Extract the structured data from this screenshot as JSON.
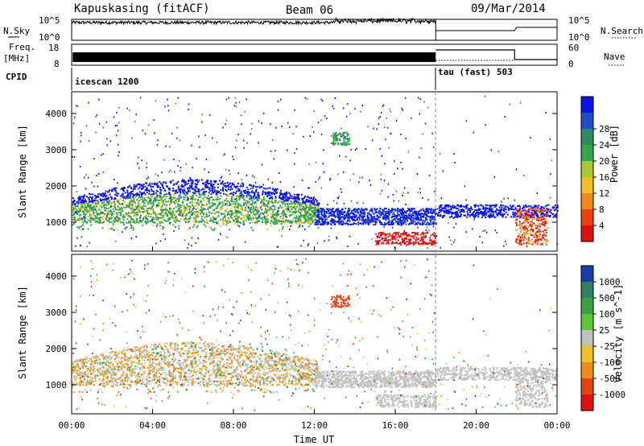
{
  "header": {
    "station": "Kapuskasing (fitACF)",
    "beam": "Beam 06",
    "date": "09/Mar/2014"
  },
  "strips": {
    "nsky_label": "N.Sky",
    "nsky_ticks": [
      "10^5",
      "10^0"
    ],
    "nsearch_label": "N.Search",
    "nsearch_ticks": [
      "10^5",
      "10^0"
    ],
    "freq_label": "Freq.",
    "freq_unit": "[MHz]",
    "freq_ticks": [
      "18",
      "8"
    ],
    "nave_label": "Nave",
    "nave_ticks": [
      "60",
      "0"
    ],
    "cpid_label": "CPID",
    "cpid_modes": [
      {
        "name": "icescan 1200",
        "start_hour": 0
      },
      {
        "name": "tau (fast) 503",
        "start_hour": 18
      }
    ]
  },
  "chart_data": [
    {
      "type": "heatmap",
      "title": "",
      "xlabel": "",
      "ylabel": "Slant Range [km]",
      "y_ticks": [
        "1000",
        "2000",
        "3000",
        "4000"
      ],
      "ylim": [
        200,
        4600
      ],
      "colorbar": {
        "label": "Power [dB]",
        "ticks": [
          "4",
          "8",
          "12",
          "16",
          "20",
          "24",
          "28"
        ],
        "colors": [
          "#0b12e6",
          "#1f4fc4",
          "#2e8a5a",
          "#33a84a",
          "#a8c832",
          "#f0c020",
          "#f08a18",
          "#ee4010",
          "#e01010"
        ]
      }
    },
    {
      "type": "heatmap",
      "title": "",
      "xlabel": "Time UT",
      "ylabel": "Slant Range [km]",
      "y_ticks": [
        "1000",
        "2000",
        "3000",
        "4000"
      ],
      "ylim": [
        200,
        4600
      ],
      "x_ticks": [
        "00:00",
        "04:00",
        "08:00",
        "12:00",
        "16:00",
        "20:00",
        "00:00"
      ],
      "xlim_hours": [
        0,
        24
      ],
      "colorbar": {
        "label": "Velocity [m s^-1]",
        "ticks": [
          "1000",
          "500",
          "100",
          "25",
          "-25",
          "-100",
          "-500",
          "-1000"
        ],
        "colors": [
          "#1a3ab0",
          "#2e8060",
          "#3aa040",
          "#58c838",
          "#c0c0c0",
          "#f0c020",
          "#f08a18",
          "#e84010",
          "#e01010"
        ]
      }
    }
  ]
}
